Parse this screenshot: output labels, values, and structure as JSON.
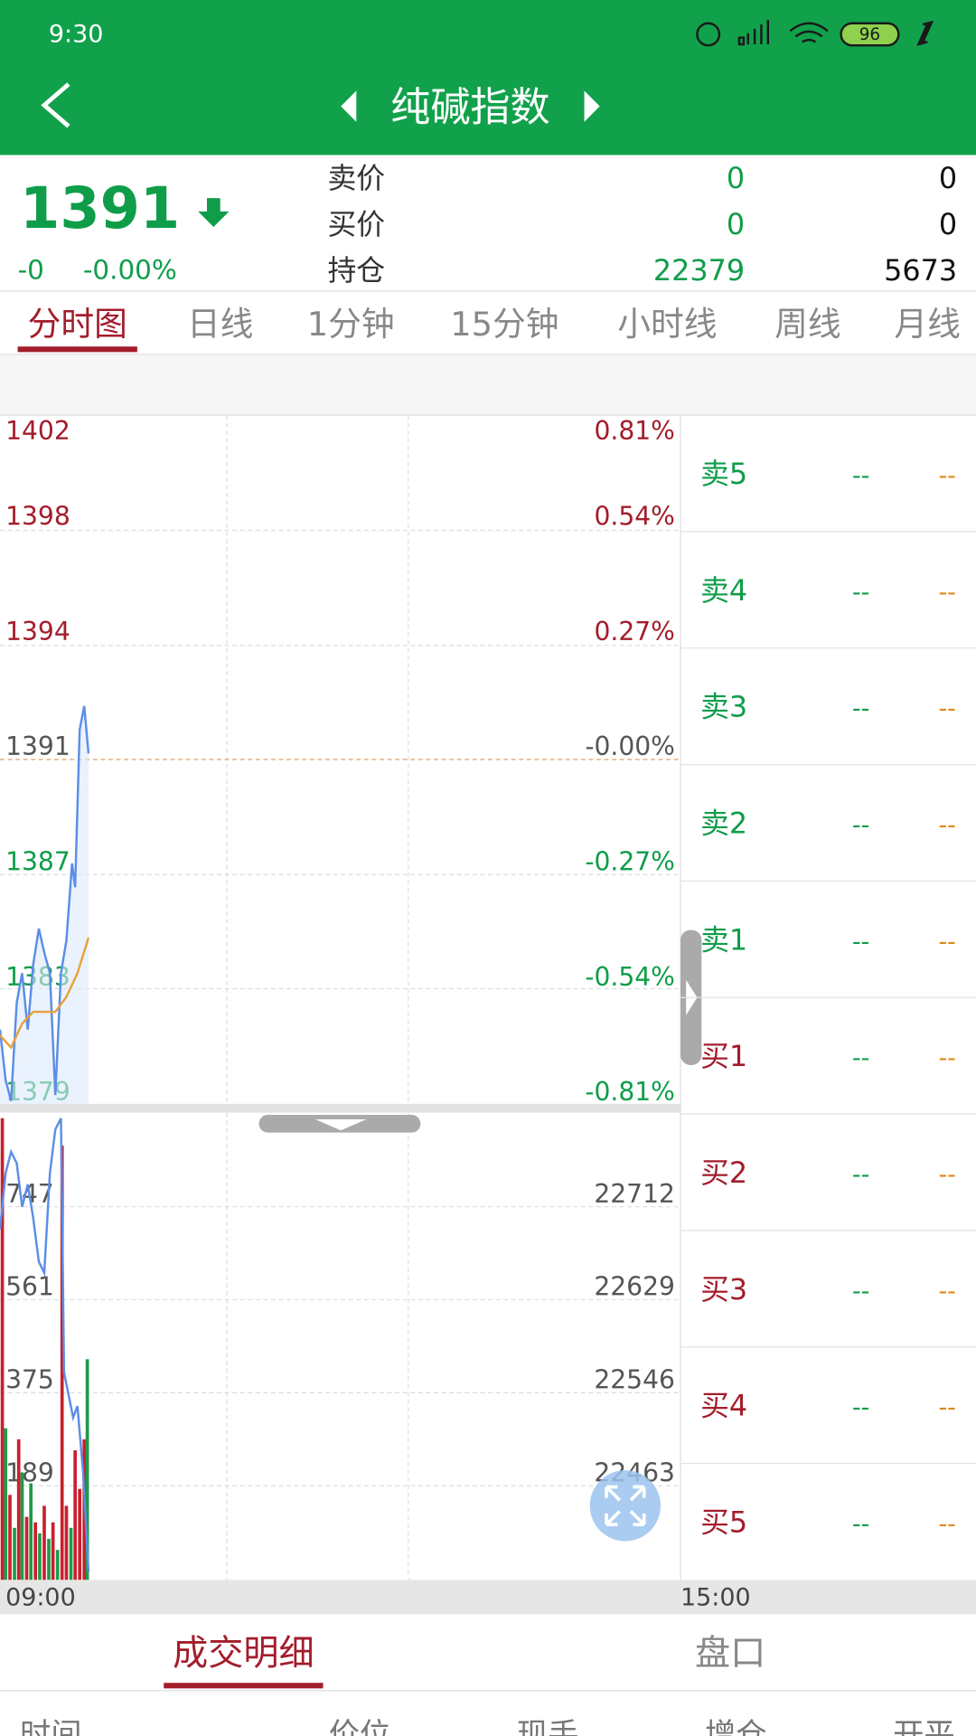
{
  "status_bar": {
    "time": "9:30",
    "battery": "96"
  },
  "header": {
    "title": "纯碱指数"
  },
  "quote": {
    "price": "1391",
    "change": "-0",
    "change_pct": "-0.00%",
    "rows": [
      {
        "label": "卖价",
        "v1": "0",
        "v2": "0"
      },
      {
        "label": "买价",
        "v1": "0",
        "v2": "0"
      },
      {
        "label": "持仓",
        "v1": "22379",
        "v2": "5673"
      }
    ]
  },
  "tabs": [
    "分时图",
    "日线",
    "1分钟",
    "15分钟",
    "小时线",
    "周线",
    "月线"
  ],
  "chart_data": [
    {
      "type": "line",
      "xlim": [
        0,
        240
      ],
      "ylim": [
        1379.4,
        1402.6
      ],
      "left_labels": [
        "1402",
        "1398",
        "1394",
        "1391",
        "1387",
        "1383",
        "1379"
      ],
      "right_labels": [
        "0.81%",
        "0.54%",
        "0.27%",
        "-0.00%",
        "-0.27%",
        "-0.54%",
        "-0.81%"
      ],
      "series": [
        {
          "color": "#5b8ee6",
          "x": [
            0,
            2,
            3.9,
            5.9,
            7.8,
            9.8,
            11.7,
            13.7,
            15.6,
            17.6,
            19.5,
            21.5,
            23.4,
            25.4,
            26.5,
            28.1,
            29.7,
            31.2
          ],
          "values": [
            1381.9,
            1380.2,
            1379.5,
            1382.8,
            1383.8,
            1381.9,
            1384.1,
            1385.3,
            1384.5,
            1383.8,
            1379.7,
            1383.8,
            1384.9,
            1387.5,
            1386.7,
            1392.0,
            1392.8,
            1391.2
          ]
        },
        {
          "color": "#e8a23c",
          "x": [
            0,
            3.9,
            7.8,
            11.7,
            15.6,
            19.5,
            23.4,
            27.3,
            31.2
          ],
          "values": [
            1381.7,
            1381.3,
            1382.1,
            1382.5,
            1382.5,
            1382.5,
            1383.0,
            1383.8,
            1385.0
          ]
        }
      ]
    },
    {
      "type": "bar",
      "xlim": [
        0,
        240
      ],
      "ylim": [
        0,
        934
      ],
      "y2lim": [
        22379,
        22796
      ],
      "left_labels": [
        "747",
        "561",
        "375",
        "189"
      ],
      "right_labels": [
        "22712",
        "22629",
        "22546",
        "22463"
      ],
      "series": [
        {
          "color": "#c8202e",
          "x": [
            0.8,
            3.5,
            6.6,
            9.4,
            12.5,
            15.6,
            18.7,
            21.9,
            23.4,
            26.5,
            28.1,
            29.7
          ],
          "values": [
            923,
            170,
            281,
            126,
            115,
            148,
            115,
            868,
            148,
            259,
            182,
            281
          ]
        },
        {
          "color": "#1f9a4a",
          "x": [
            2,
            5.1,
            7.8,
            10.9,
            14,
            17.2,
            20.3,
            25,
            30.8
          ],
          "values": [
            303,
            104,
            215,
            193,
            93,
            82,
            60,
            104,
            441
          ]
        },
        {
          "color": "#5b8ee6",
          "axis": "y2",
          "x": [
            0,
            2,
            3.9,
            5.9,
            7.8,
            9.8,
            11.7,
            13.7,
            15.6,
            17.6,
            19.5,
            21.5,
            22.6,
            24.2,
            25.8,
            27.3,
            29.3,
            31.2
          ],
          "values": [
            22692,
            22742,
            22761,
            22751,
            22712,
            22732,
            22702,
            22663,
            22653,
            22742,
            22781,
            22791,
            22564,
            22544,
            22524,
            22534,
            22475,
            22386
          ]
        }
      ]
    }
  ],
  "order_book": [
    {
      "label": "卖5",
      "price": "--",
      "volume": "--"
    },
    {
      "label": "卖4",
      "price": "--",
      "volume": "--"
    },
    {
      "label": "卖3",
      "price": "--",
      "volume": "--"
    },
    {
      "label": "卖2",
      "price": "--",
      "volume": "--"
    },
    {
      "label": "卖1",
      "price": "--",
      "volume": "--"
    },
    {
      "label": "买1",
      "price": "--",
      "volume": "--"
    },
    {
      "label": "买2",
      "price": "--",
      "volume": "--"
    },
    {
      "label": "买3",
      "price": "--",
      "volume": "--"
    },
    {
      "label": "买4",
      "price": "--",
      "volume": "--"
    },
    {
      "label": "买5",
      "price": "--",
      "volume": "--"
    }
  ],
  "time_axis": {
    "start": "09:00",
    "end": "15:00"
  },
  "bottom_tabs": [
    "成交明细",
    "盘口"
  ],
  "table_header": [
    "时间",
    "价位",
    "现手",
    "增仓",
    "开平"
  ]
}
